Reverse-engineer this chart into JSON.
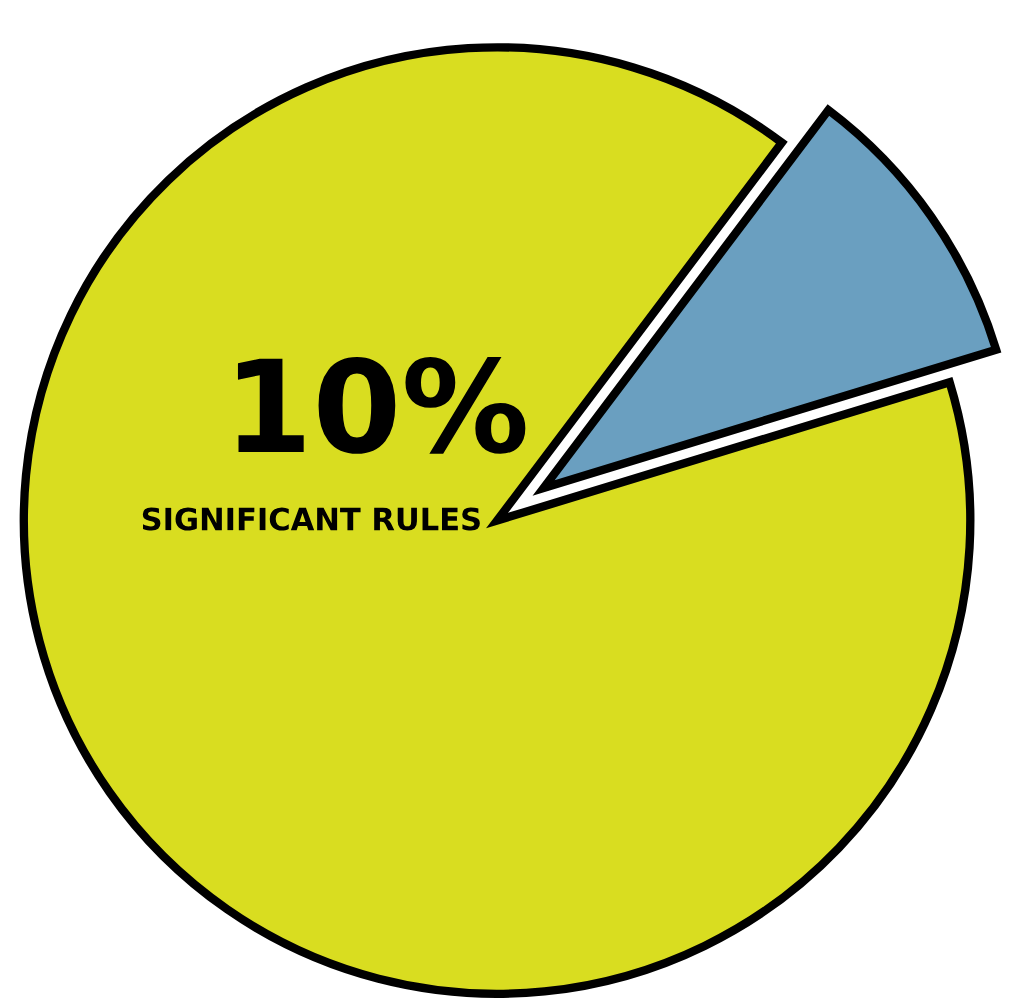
{
  "chart_data": {
    "type": "pie",
    "categories": [
      null,
      null
    ],
    "values": [
      10,
      90
    ],
    "colors": [
      "#6a9fc0",
      "#d9dd20"
    ],
    "annotations": [
      "10%",
      "SIGNIFICANT RULES"
    ]
  }
}
